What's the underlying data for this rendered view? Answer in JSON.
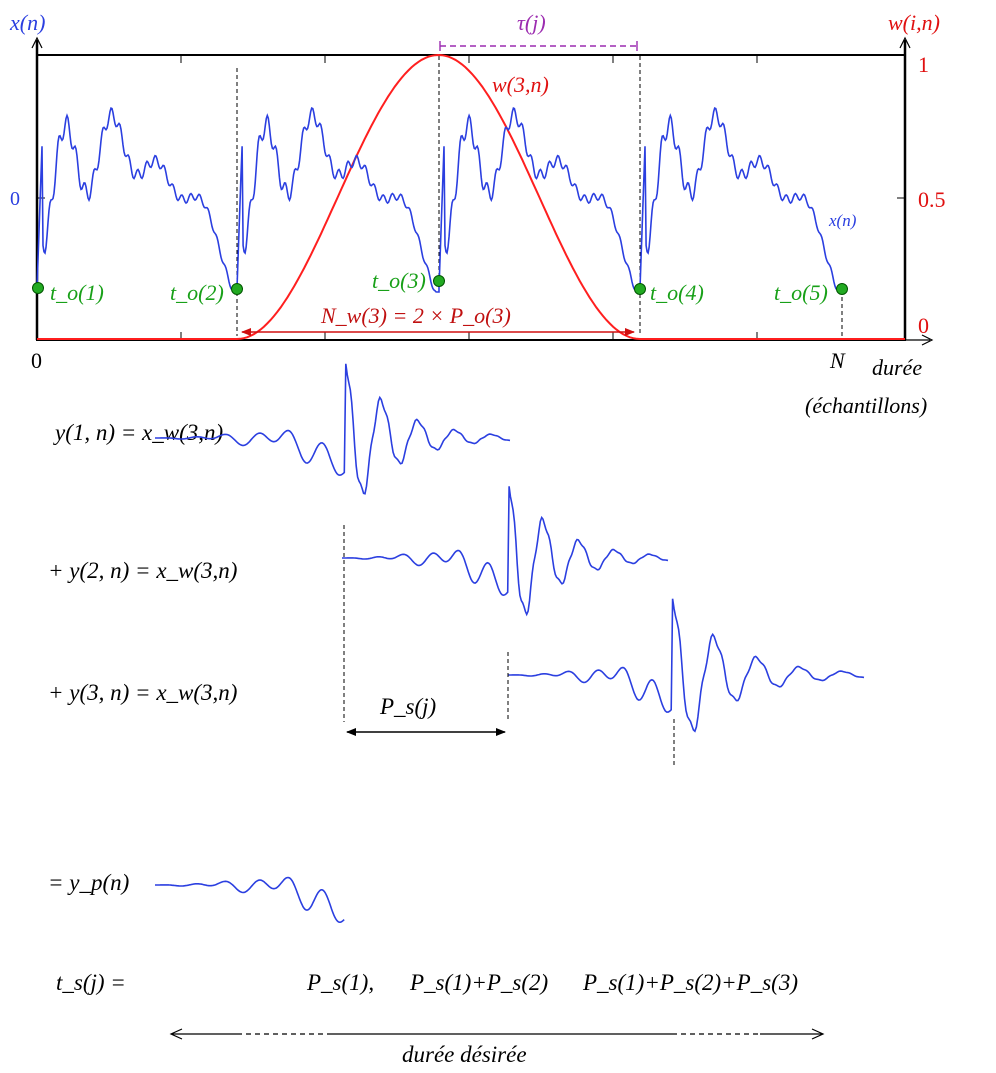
{
  "colors": {
    "signal": "#2b3fe0",
    "window": "#ff1f1f",
    "mark": "#1aa01a",
    "tau": "#9c2cb0",
    "axis": "#000000"
  },
  "top_plot": {
    "y_left_label": "x(n)",
    "y_right_label": "w(i,n)",
    "left_tick_zero": "0",
    "right_ticks": [
      "1",
      "0.5",
      "0"
    ],
    "x_tick_zero": "0",
    "x_tick_end": "N",
    "xlabel_line1": "durée",
    "xlabel_line2": "(échantillons)",
    "window_label": "w(3,n)",
    "signal_label": "x(n)",
    "tau_label": "τ(j)",
    "nw_label": "N_w(3) = 2 × P_o(3)",
    "marks": [
      "t_o(1)",
      "t_o(2)",
      "t_o(3)",
      "t_o(4)",
      "t_o(5)"
    ]
  },
  "rows": [
    {
      "label": "y(1, n) = x_w(3,n)"
    },
    {
      "label": "+ y(2, n) = x_w(3,n)"
    },
    {
      "label": "+ y(3, n) = x_w(3,n)"
    },
    {
      "label": "= y_p(n)"
    }
  ],
  "ps_label": "P_s(j)",
  "ts_label": "t_s(j) =",
  "ts_values": [
    "P_s(1),",
    "P_s(1)+P_s(2)",
    "P_s(1)+P_s(2)+P_s(3)"
  ],
  "duration_label": "durée désirée"
}
